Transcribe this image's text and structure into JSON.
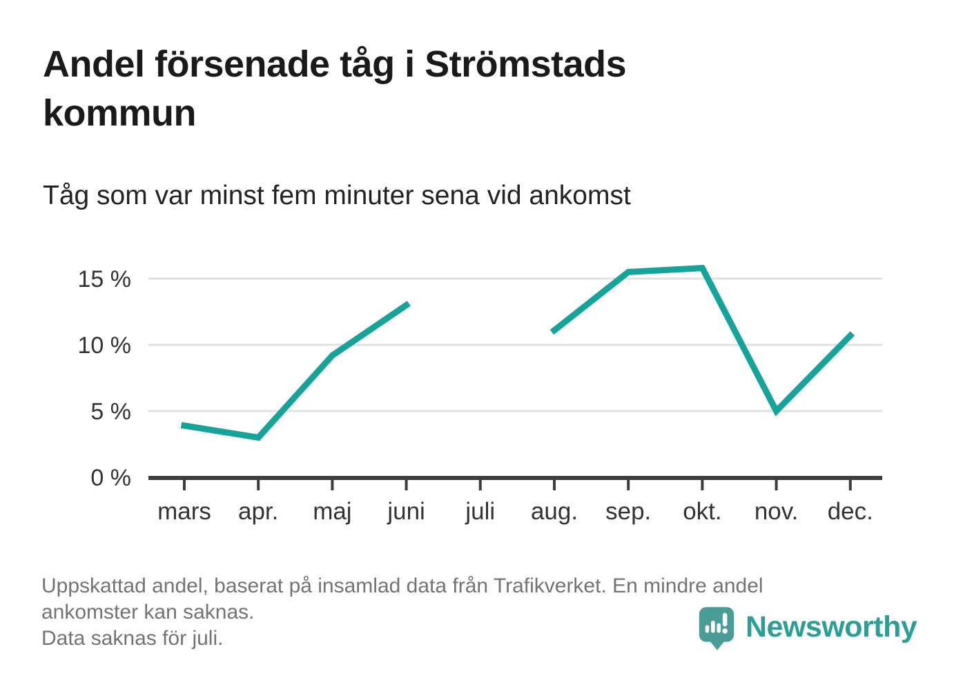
{
  "header": {
    "title": "Andel försenade tåg i Strömstads kommun",
    "subtitle": "Tåg som var minst fem minuter sena vid ankomst"
  },
  "chart_data": {
    "type": "line",
    "title": "Andel försenade tåg i Strömstads kommun",
    "subtitle": "Tåg som var minst fem minuter sena vid ankomst",
    "categories": [
      "mars",
      "apr.",
      "maj",
      "juni",
      "juli",
      "aug.",
      "sep.",
      "okt.",
      "nov.",
      "dec."
    ],
    "series": [
      {
        "name": "Andel försenade tåg (%)",
        "values": [
          3.9,
          3.0,
          9.2,
          13.0,
          null,
          11.1,
          15.5,
          15.8,
          5.0,
          10.7
        ]
      }
    ],
    "xlabel": "",
    "ylabel": "",
    "ylim": [
      0,
      16.6
    ],
    "yticks": [
      0,
      5,
      10,
      15
    ],
    "ytick_labels": [
      "0 %",
      "5 %",
      "10 %",
      "15 %"
    ],
    "grid": "horizontal",
    "legend_position": "none",
    "missing_data_categories": [
      "juli"
    ],
    "line_color": "#16a49a"
  },
  "footer": {
    "note_lines": [
      "Uppskattad andel, baserat på insamlad data från Trafikverket. En mindre andel",
      "ankomster kan saknas.",
      "Data saknas för juli."
    ],
    "logo_text": "Newsworthy"
  },
  "colors": {
    "line": "#16a49a",
    "axis": "#3d3d3d",
    "gridline": "#e1e1e1",
    "tick_label": "#333333",
    "title": "#1a1a1a",
    "subtitle": "#222222",
    "note": "#737373",
    "logo_icon": "#4a9d96",
    "logo_text": "#2b9e95"
  }
}
